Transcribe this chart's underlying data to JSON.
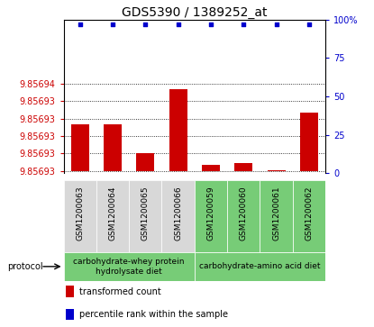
{
  "title": "GDS5390 / 1389252_at",
  "samples": [
    "GSM1200063",
    "GSM1200064",
    "GSM1200065",
    "GSM1200066",
    "GSM1200059",
    "GSM1200060",
    "GSM1200061",
    "GSM1200062"
  ],
  "bar_values": [
    9.856932,
    9.856932,
    9.8569295,
    9.856935,
    9.8569285,
    9.8569287,
    9.8569281,
    9.856933
  ],
  "bar_baseline": 9.856928,
  "percentile_values": [
    97,
    97,
    97,
    97,
    97,
    97,
    97,
    97
  ],
  "ylim_min": 9.8569278,
  "ylim_max": 9.856941,
  "ytick_values": [
    9.856928,
    9.8569295,
    9.856931,
    9.8569325,
    9.856934,
    9.8569355
  ],
  "ytick_labels": [
    "9.85693",
    "9.85693",
    "9.85693",
    "9.85693",
    "9.85693",
    "9.85694"
  ],
  "right_ytick_values": [
    0,
    25,
    50,
    75,
    100
  ],
  "right_ytick_labels": [
    "0",
    "25",
    "50",
    "75",
    "100%"
  ],
  "bar_color": "#cc0000",
  "dot_color": "#0000cc",
  "group1_samples": 4,
  "group2_samples": 4,
  "group1_label": "carbohydrate-whey protein\nhydrolysate diet",
  "group2_label": "carbohydrate-amino acid diet",
  "group1_color": "#d8d8d8",
  "group2_color": "#77cc77",
  "protocol_label": "protocol",
  "legend_bar_label": "transformed count",
  "legend_dot_label": "percentile rank within the sample",
  "background_color": "#ffffff",
  "title_fontsize": 10,
  "tick_fontsize": 7,
  "sample_fontsize": 6.5,
  "legend_fontsize": 7,
  "proto_fontsize": 6.5
}
